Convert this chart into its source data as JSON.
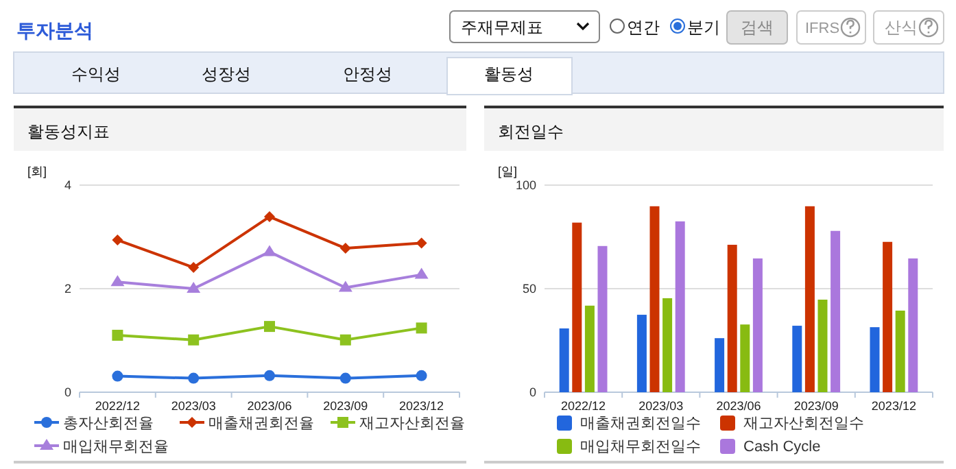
{
  "chart_data": [
    {
      "type": "other",
      "title": "투자분석",
      "annotations": [
        "주재무제표",
        "연간",
        "분기",
        "검색",
        "IFRS",
        "산식",
        "수익성",
        "성장성",
        "안정성",
        "활동성"
      ]
    },
    {
      "type": "line",
      "title": "활동성지표",
      "ylabel": "[회]",
      "categories": [
        "2022/12",
        "2023/03",
        "2023/06",
        "2023/09",
        "2023/12"
      ],
      "ylim": [
        0,
        4
      ],
      "yticks": [
        0,
        2,
        4
      ],
      "grid": "y",
      "legend": "bottom",
      "series": [
        {
          "name": "총자산회전율",
          "color": "#2a6fdb",
          "marker": "circle",
          "values": [
            0.31,
            0.27,
            0.32,
            0.27,
            0.32
          ]
        },
        {
          "name": "매출채권회전율",
          "color": "#cc3300",
          "marker": "diamond",
          "values": [
            2.94,
            2.41,
            3.39,
            2.78,
            2.88
          ]
        },
        {
          "name": "재고자산회전율",
          "color": "#8dc21f",
          "marker": "square",
          "values": [
            1.1,
            1.01,
            1.27,
            1.01,
            1.24
          ]
        },
        {
          "name": "매입채무회전율",
          "color": "#a77fdc",
          "marker": "triangle",
          "values": [
            2.13,
            2.0,
            2.71,
            2.02,
            2.27
          ]
        }
      ]
    },
    {
      "type": "bar",
      "title": "회전일수",
      "ylabel": "[일]",
      "categories": [
        "2022/12",
        "2023/03",
        "2023/06",
        "2023/09",
        "2023/12"
      ],
      "ylim": [
        0,
        100
      ],
      "yticks": [
        0,
        50,
        100
      ],
      "grid": "y",
      "legend": "bottom",
      "series": [
        {
          "name": "매출채권회전일수",
          "color": "#2266dd",
          "values": [
            30.8,
            37.4,
            26.1,
            32.1,
            31.4
          ]
        },
        {
          "name": "재고자산회전일수",
          "color": "#cc3300",
          "values": [
            81.9,
            89.8,
            71.2,
            89.8,
            72.6
          ]
        },
        {
          "name": "매입채무회전일수",
          "color": "#88bb11",
          "values": [
            41.8,
            45.4,
            32.7,
            44.7,
            39.4
          ]
        },
        {
          "name": "Cash Cycle",
          "color": "#aa77dd",
          "values": [
            70.6,
            82.5,
            64.6,
            77.9,
            64.6
          ]
        }
      ]
    }
  ]
}
